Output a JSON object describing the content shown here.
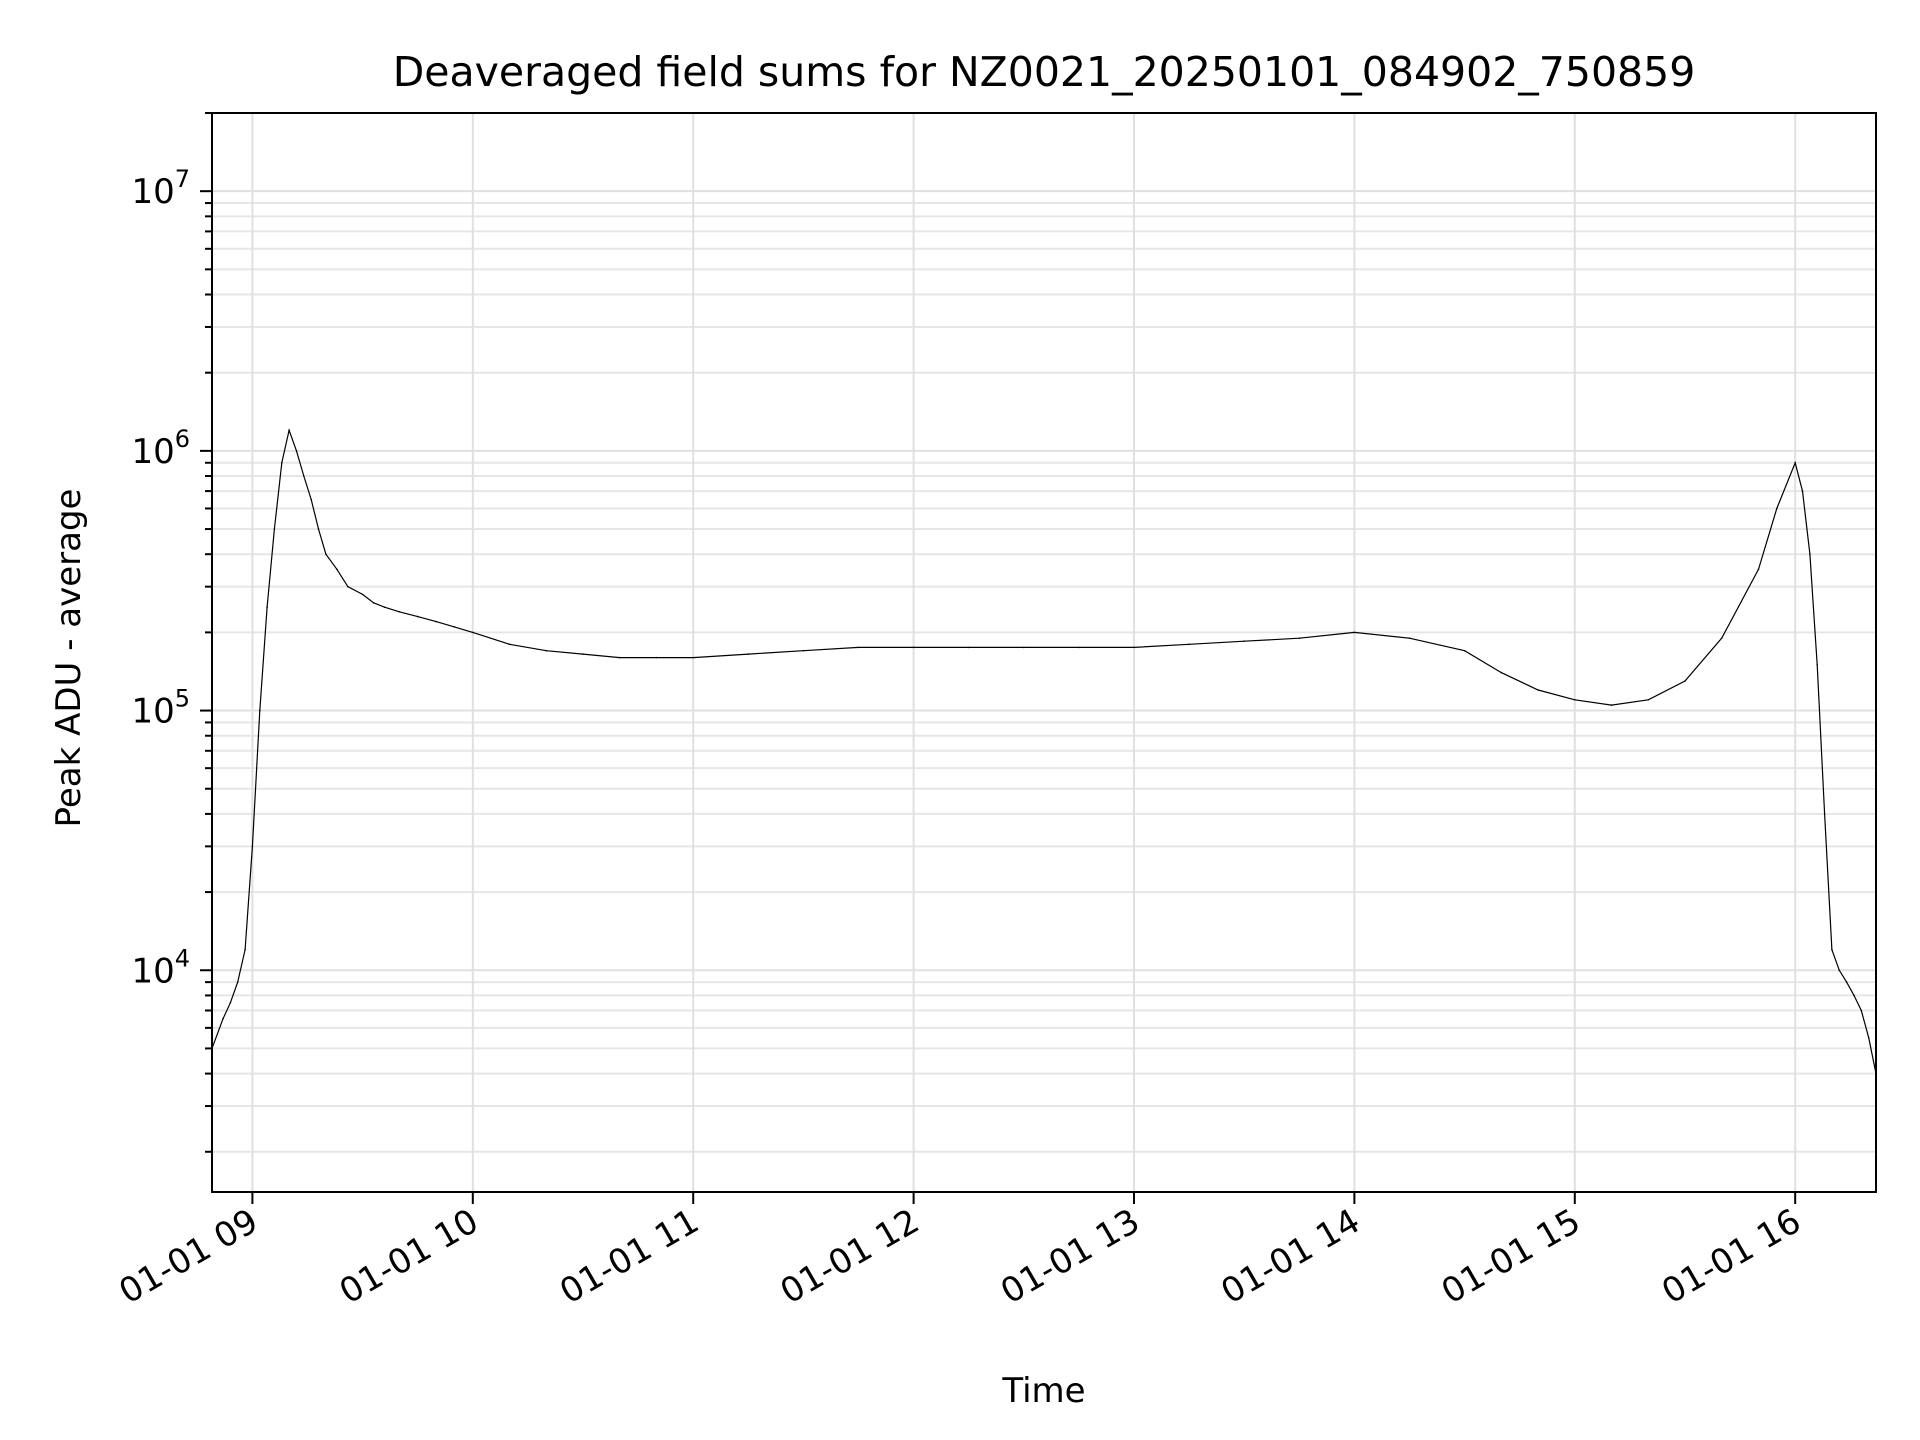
{
  "chart_data": {
    "type": "line",
    "title": "Deaveraged field sums for NZ0021_20250101_084902_750859",
    "xlabel": "Time",
    "ylabel": "Peak ADU - average",
    "yscale": "log",
    "grid": true,
    "x_is_time": true,
    "xlim": [
      "2025-01-01 08:49",
      "2025-01-01 16:22"
    ],
    "ylim": [
      1400,
      20000000
    ],
    "x_ticks": [
      {
        "value": "2025-01-01 09:00",
        "label": "01-01 09"
      },
      {
        "value": "2025-01-01 10:00",
        "label": "01-01 10"
      },
      {
        "value": "2025-01-01 11:00",
        "label": "01-01 11"
      },
      {
        "value": "2025-01-01 12:00",
        "label": "01-01 12"
      },
      {
        "value": "2025-01-01 13:00",
        "label": "01-01 13"
      },
      {
        "value": "2025-01-01 14:00",
        "label": "01-01 14"
      },
      {
        "value": "2025-01-01 15:00",
        "label": "01-01 15"
      },
      {
        "value": "2025-01-01 16:00",
        "label": "01-01 16"
      }
    ],
    "y_ticks": [
      {
        "value": 10000,
        "base": "10",
        "exp": "4"
      },
      {
        "value": 100000,
        "base": "10",
        "exp": "5"
      },
      {
        "value": 1000000,
        "base": "10",
        "exp": "6"
      },
      {
        "value": 10000000,
        "base": "10",
        "exp": "7"
      }
    ],
    "line_color": "#000000",
    "series": [
      {
        "x": [
          "2025-01-01 08:49",
          "2025-01-01 08:52",
          "2025-01-01 08:54",
          "2025-01-01 08:56",
          "2025-01-01 08:58",
          "2025-01-01 09:00",
          "2025-01-01 09:02",
          "2025-01-01 09:04",
          "2025-01-01 09:06",
          "2025-01-01 09:08",
          "2025-01-01 09:10",
          "2025-01-01 09:12",
          "2025-01-01 09:14",
          "2025-01-01 09:16",
          "2025-01-01 09:18",
          "2025-01-01 09:20",
          "2025-01-01 09:23",
          "2025-01-01 09:26",
          "2025-01-01 09:30",
          "2025-01-01 09:33",
          "2025-01-01 09:36",
          "2025-01-01 09:40",
          "2025-01-01 09:45",
          "2025-01-01 09:50",
          "2025-01-01 09:55",
          "2025-01-01 10:00",
          "2025-01-01 10:10",
          "2025-01-01 10:20",
          "2025-01-01 10:30",
          "2025-01-01 10:40",
          "2025-01-01 10:50",
          "2025-01-01 11:00",
          "2025-01-01 11:15",
          "2025-01-01 11:30",
          "2025-01-01 11:45",
          "2025-01-01 12:00",
          "2025-01-01 12:15",
          "2025-01-01 12:30",
          "2025-01-01 12:45",
          "2025-01-01 13:00",
          "2025-01-01 13:15",
          "2025-01-01 13:30",
          "2025-01-01 13:45",
          "2025-01-01 14:00",
          "2025-01-01 14:15",
          "2025-01-01 14:30",
          "2025-01-01 14:40",
          "2025-01-01 14:50",
          "2025-01-01 15:00",
          "2025-01-01 15:10",
          "2025-01-01 15:20",
          "2025-01-01 15:30",
          "2025-01-01 15:40",
          "2025-01-01 15:50",
          "2025-01-01 15:55",
          "2025-01-01 16:00",
          "2025-01-01 16:02",
          "2025-01-01 16:04",
          "2025-01-01 16:06",
          "2025-01-01 16:08",
          "2025-01-01 16:10",
          "2025-01-01 16:12",
          "2025-01-01 16:14",
          "2025-01-01 16:16",
          "2025-01-01 16:18",
          "2025-01-01 16:20",
          "2025-01-01 16:22"
        ],
        "y": [
          5000,
          6500,
          7500,
          9000,
          12000,
          30000,
          100000,
          250000,
          500000,
          900000,
          1200000,
          1000000,
          800000,
          650000,
          500000,
          400000,
          350000,
          300000,
          280000,
          260000,
          250000,
          240000,
          230000,
          220000,
          210000,
          200000,
          180000,
          170000,
          165000,
          160000,
          160000,
          160000,
          165000,
          170000,
          175000,
          175000,
          175000,
          175000,
          175000,
          175000,
          180000,
          185000,
          190000,
          200000,
          190000,
          170000,
          140000,
          120000,
          110000,
          105000,
          110000,
          130000,
          190000,
          350000,
          600000,
          900000,
          700000,
          400000,
          150000,
          40000,
          12000,
          10000,
          9000,
          8000,
          7000,
          5500,
          4000
        ]
      }
    ]
  }
}
